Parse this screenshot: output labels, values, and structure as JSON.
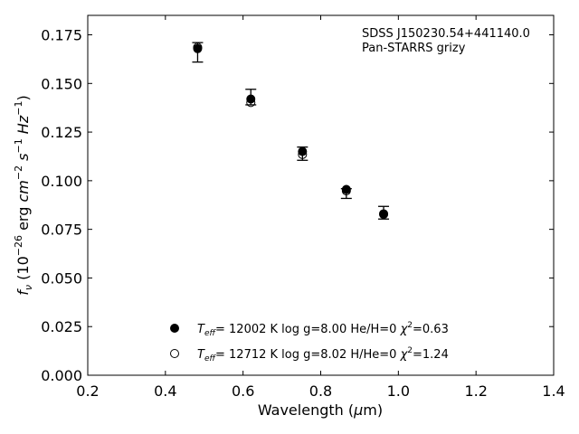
{
  "chart_data": {
    "type": "scatter",
    "annotations": [
      "SDSS J150230.54+441140.0",
      "Pan-STARRS grizy"
    ],
    "xlabel": {
      "main": "Wavelength (",
      "mu": "μ",
      "unit": "m)"
    },
    "ylabel": {
      "f": "f",
      "sub_nu": "ν",
      "open": " (10",
      "exp1": "−26",
      "erg": " erg ",
      "cm": "cm",
      "exp2": "−2",
      "s": " s",
      "exp3": "−1",
      "hz": " Hz",
      "exp4": "−1",
      "close": ")"
    },
    "xlim": [
      0.2,
      1.4
    ],
    "ylim": [
      0.0,
      0.185
    ],
    "xticks": [
      0.2,
      0.4,
      0.6,
      0.8,
      1.0,
      1.2,
      1.4
    ],
    "xtick_labels": [
      "0.2",
      "0.4",
      "0.6",
      "0.8",
      "1.0",
      "1.2",
      "1.4"
    ],
    "yticks": [
      0.0,
      0.025,
      0.05,
      0.075,
      0.1,
      0.125,
      0.15,
      0.175
    ],
    "ytick_labels": [
      "0.000",
      "0.025",
      "0.050",
      "0.075",
      "0.100",
      "0.125",
      "0.150",
      "0.175"
    ],
    "grid": false,
    "observed": {
      "x": [
        0.483,
        0.62,
        0.753,
        0.866,
        0.962
      ],
      "y": [
        0.1665,
        0.1405,
        0.1138,
        0.0941,
        0.0833
      ],
      "yerr_low": [
        0.0055,
        0.0015,
        0.0033,
        0.0032,
        0.003
      ],
      "yerr_high": [
        0.0045,
        0.0065,
        0.0035,
        0.0018,
        0.0035
      ]
    },
    "series": [
      {
        "label_T": "T",
        "label_eff": "eff",
        "label_rest": "= 12002 K  log g=8.00  He/H=0  ",
        "label_chi": "χ",
        "label_chi_exp": "2",
        "label_chi_val": "=0.63",
        "marker": "filled",
        "x": [
          0.483,
          0.62,
          0.753,
          0.866,
          0.962
        ],
        "y": [
          0.1679,
          0.142,
          0.115,
          0.0955,
          0.0827
        ]
      },
      {
        "label_T": "T",
        "label_eff": "eff",
        "label_rest": "= 12712 K  log g=8.02  H/He=0  ",
        "label_chi": "χ",
        "label_chi_exp": "2",
        "label_chi_val": "=1.24",
        "marker": "open",
        "x": [
          0.483,
          0.62,
          0.753,
          0.866,
          0.962
        ],
        "y": [
          0.1686,
          0.1402,
          0.1135,
          0.0948,
          0.083
        ]
      }
    ],
    "legend_position": "lower-center",
    "colors": {
      "marker": "#000000",
      "background": "#ffffff"
    }
  }
}
